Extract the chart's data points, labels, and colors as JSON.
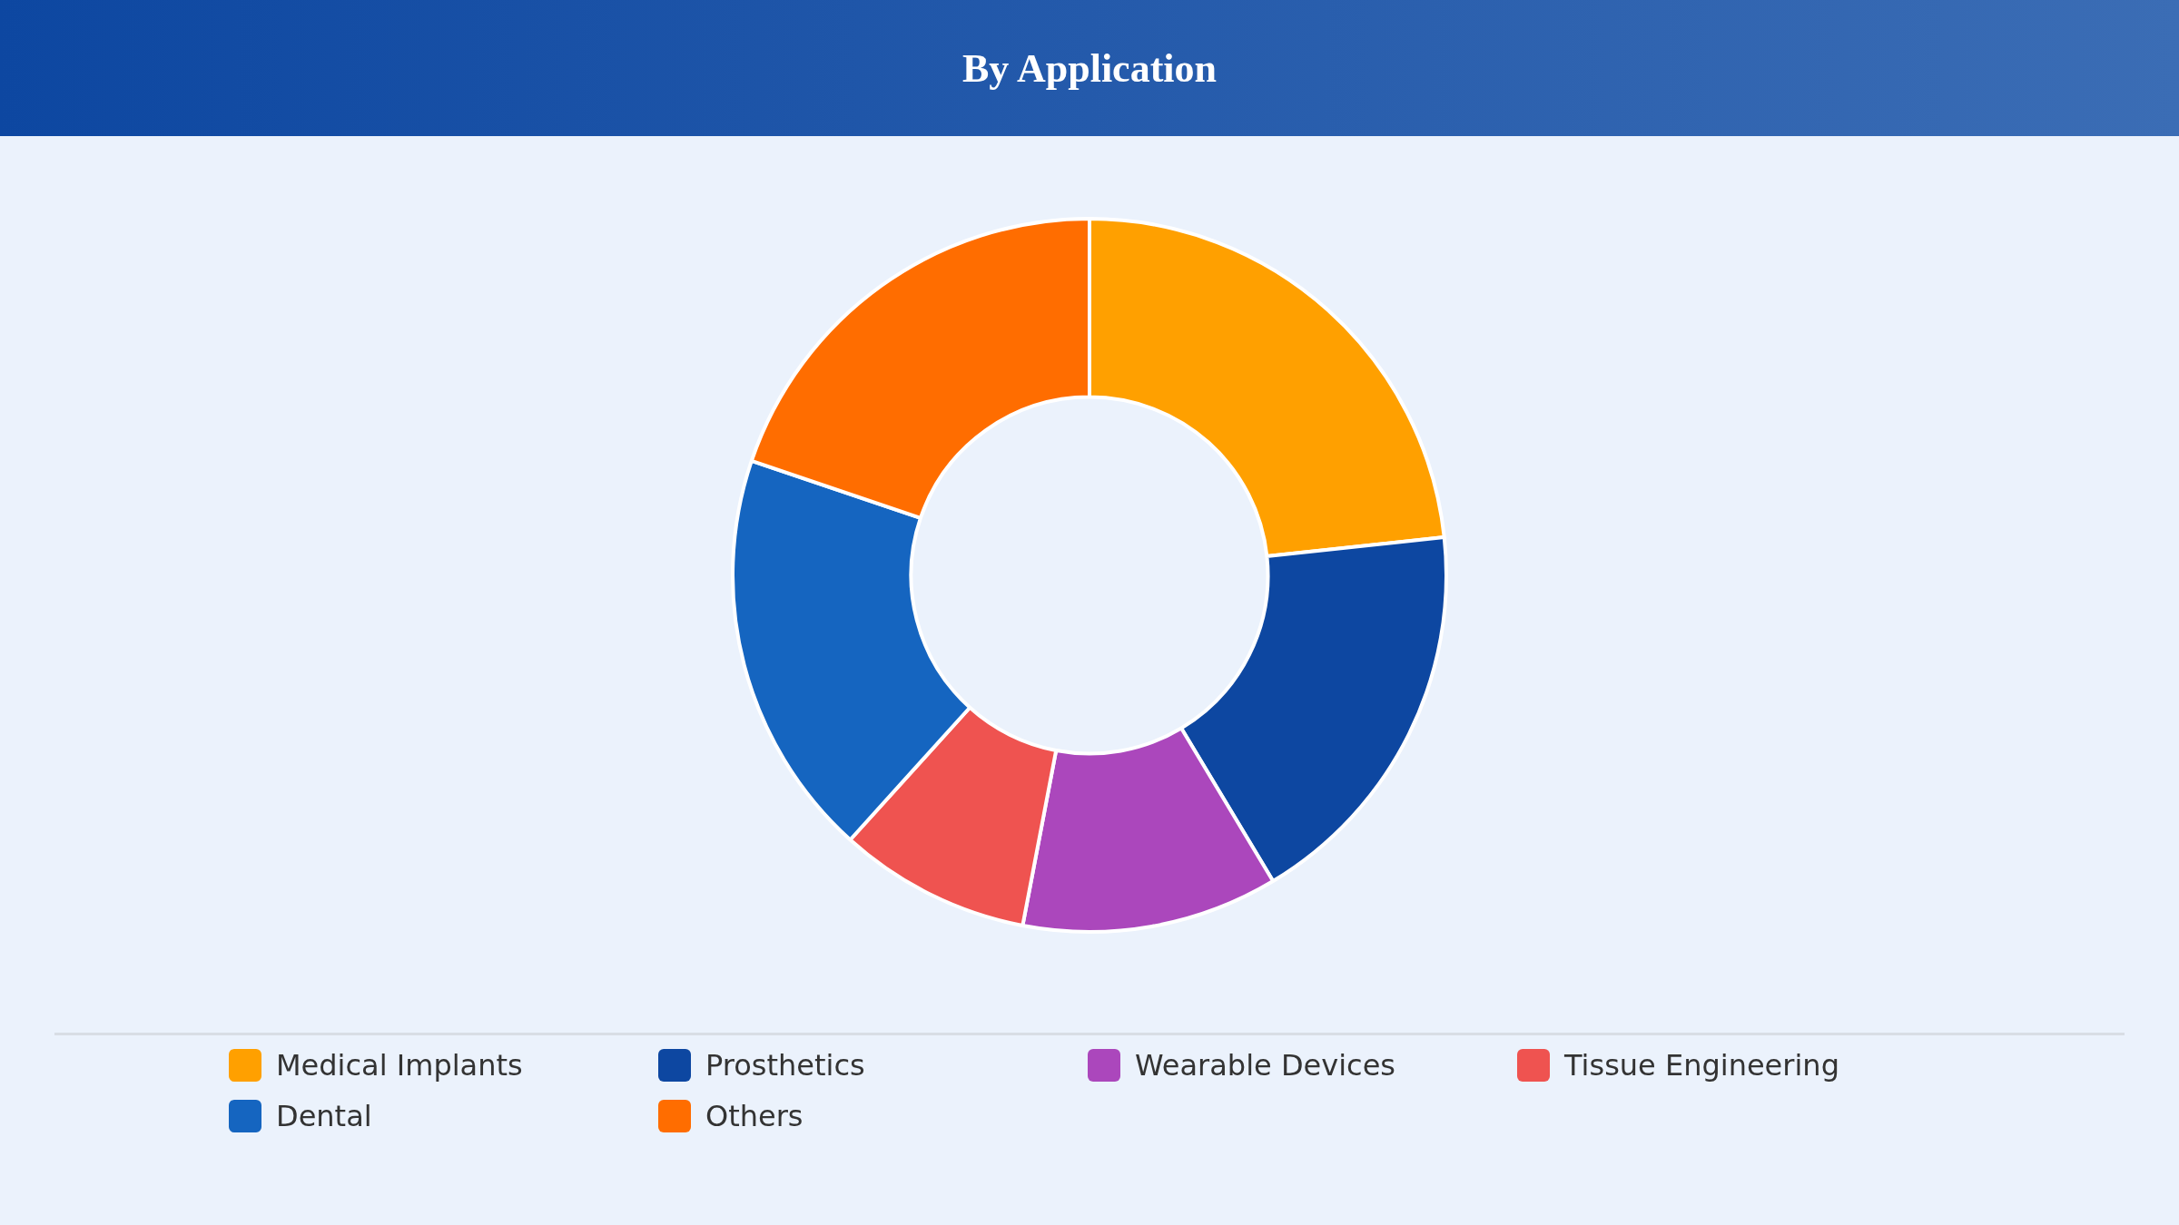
{
  "chart_data": {
    "type": "donut",
    "title": "By Application",
    "categories": [
      "Medical Implants",
      "Prosthetics",
      "Wearable Devices",
      "Tissue Engineering",
      "Dental",
      "Others"
    ],
    "values": [
      23.3,
      18.1,
      11.6,
      8.7,
      18.5,
      19.8
    ],
    "colors": [
      "#ffa000",
      "#0d47a1",
      "#ab47bc",
      "#ef5350",
      "#1565c0",
      "#ff6d00"
    ],
    "legend": "bottom"
  }
}
